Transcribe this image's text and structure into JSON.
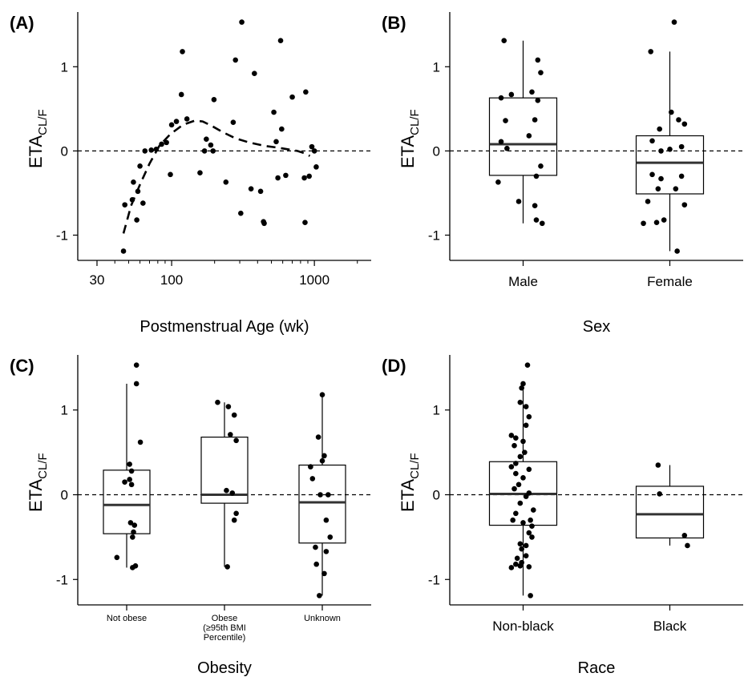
{
  "chart_data": [
    {
      "panel": "(A)",
      "type": "scatter",
      "xlabel": "Postmenstrual Age (wk)",
      "ylabel": "ETA",
      "ylabel_sub": "CL/F",
      "x_scale": "log",
      "xlim": [
        22,
        2500
      ],
      "ylim": [
        -1.3,
        1.65
      ],
      "x_ticks": [
        30,
        100,
        1000
      ],
      "x_tick_labels": [
        "30",
        "100",
        "1000"
      ],
      "y_ticks": [
        -1,
        0,
        1
      ],
      "y_tick_labels": [
        "-1",
        "0",
        "1"
      ],
      "reference_line": 0,
      "grid": false,
      "points": [
        [
          46,
          -1.19
        ],
        [
          47,
          -0.64
        ],
        [
          53,
          -0.58
        ],
        [
          54,
          -0.37
        ],
        [
          57,
          -0.82
        ],
        [
          58,
          -0.48
        ],
        [
          60,
          -0.18
        ],
        [
          63,
          -0.62
        ],
        [
          65,
          0.0
        ],
        [
          72,
          0.01
        ],
        [
          78,
          0.02
        ],
        [
          85,
          0.08
        ],
        [
          92,
          0.1
        ],
        [
          98,
          -0.28
        ],
        [
          100,
          0.31
        ],
        [
          108,
          0.35
        ],
        [
          117,
          0.67
        ],
        [
          119,
          1.18
        ],
        [
          128,
          0.38
        ],
        [
          158,
          -0.26
        ],
        [
          170,
          0.0
        ],
        [
          175,
          0.14
        ],
        [
          188,
          0.07
        ],
        [
          195,
          0.0
        ],
        [
          198,
          0.61
        ],
        [
          240,
          -0.37
        ],
        [
          270,
          0.34
        ],
        [
          280,
          1.08
        ],
        [
          305,
          -0.74
        ],
        [
          310,
          1.53
        ],
        [
          360,
          -0.45
        ],
        [
          380,
          0.92
        ],
        [
          420,
          -0.48
        ],
        [
          440,
          -0.84
        ],
        [
          445,
          -0.86
        ],
        [
          520,
          0.46
        ],
        [
          540,
          0.11
        ],
        [
          555,
          -0.32
        ],
        [
          580,
          1.31
        ],
        [
          590,
          0.26
        ],
        [
          630,
          -0.29
        ],
        [
          700,
          0.64
        ],
        [
          850,
          -0.32
        ],
        [
          860,
          -0.85
        ],
        [
          870,
          0.7
        ],
        [
          920,
          -0.3
        ],
        [
          960,
          0.05
        ],
        [
          1000,
          0.0
        ],
        [
          1030,
          -0.19
        ]
      ],
      "smooth_line": [
        [
          46,
          -0.98
        ],
        [
          52,
          -0.65
        ],
        [
          60,
          -0.4
        ],
        [
          70,
          -0.15
        ],
        [
          82,
          0.06
        ],
        [
          98,
          0.2
        ],
        [
          120,
          0.31
        ],
        [
          145,
          0.36
        ],
        [
          165,
          0.35
        ],
        [
          190,
          0.3
        ],
        [
          230,
          0.22
        ],
        [
          280,
          0.15
        ],
        [
          350,
          0.1
        ],
        [
          450,
          0.06
        ],
        [
          550,
          0.04
        ],
        [
          650,
          0.02
        ],
        [
          760,
          0.0
        ],
        [
          860,
          -0.03
        ],
        [
          930,
          -0.06
        ]
      ]
    },
    {
      "panel": "(B)",
      "type": "box",
      "xlabel": "Sex",
      "ylabel": "ETA",
      "ylabel_sub": "CL/F",
      "ylim": [
        -1.3,
        1.65
      ],
      "y_ticks": [
        -1,
        0,
        1
      ],
      "y_tick_labels": [
        "-1",
        "0",
        "1"
      ],
      "reference_line": 0,
      "grid": false,
      "categories": [
        "Male",
        "Female"
      ],
      "boxes": [
        {
          "q1": -0.29,
          "median": 0.08,
          "q3": 0.63,
          "whisker_low": -0.86,
          "whisker_high": 1.31
        },
        {
          "q1": -0.51,
          "median": -0.14,
          "q3": 0.18,
          "whisker_low": -1.19,
          "whisker_high": 1.18
        }
      ],
      "points": [
        [
          [
            -0.13,
            1.31
          ],
          [
            0.1,
            1.08
          ],
          [
            0.12,
            0.93
          ],
          [
            -0.08,
            0.67
          ],
          [
            0.06,
            0.7
          ],
          [
            -0.15,
            0.63
          ],
          [
            0.1,
            0.6
          ],
          [
            -0.12,
            0.36
          ],
          [
            0.08,
            0.37
          ],
          [
            0.04,
            0.18
          ],
          [
            -0.15,
            0.11
          ],
          [
            -0.11,
            0.03
          ],
          [
            0.12,
            -0.18
          ],
          [
            0.09,
            -0.3
          ],
          [
            -0.17,
            -0.37
          ],
          [
            -0.03,
            -0.6
          ],
          [
            0.08,
            -0.65
          ],
          [
            0.09,
            -0.82
          ],
          [
            0.13,
            -0.86
          ]
        ],
        [
          [
            0.03,
            1.53
          ],
          [
            -0.13,
            1.18
          ],
          [
            0.01,
            0.46
          ],
          [
            0.06,
            0.37
          ],
          [
            0.1,
            0.32
          ],
          [
            -0.07,
            0.26
          ],
          [
            -0.12,
            0.12
          ],
          [
            0.08,
            0.05
          ],
          [
            0.0,
            0.02
          ],
          [
            -0.06,
            0.0
          ],
          [
            -0.12,
            -0.28
          ],
          [
            -0.06,
            -0.33
          ],
          [
            0.08,
            -0.3
          ],
          [
            0.04,
            -0.45
          ],
          [
            -0.08,
            -0.45
          ],
          [
            -0.15,
            -0.6
          ],
          [
            0.1,
            -0.64
          ],
          [
            -0.04,
            -0.82
          ],
          [
            -0.18,
            -0.86
          ],
          [
            -0.09,
            -0.85
          ],
          [
            0.05,
            -1.19
          ]
        ]
      ]
    },
    {
      "panel": "(C)",
      "type": "box",
      "xlabel": "Obesity",
      "ylabel": "ETA",
      "ylabel_sub": "CL/F",
      "ylim": [
        -1.3,
        1.65
      ],
      "y_ticks": [
        -1,
        0,
        1
      ],
      "y_tick_labels": [
        "-1",
        "0",
        "1"
      ],
      "reference_line": 0,
      "grid": false,
      "categories": [
        "Not obese",
        "Obese\n(≥95th BMI\nPercentile)",
        "Unknown"
      ],
      "boxes": [
        {
          "q1": -0.46,
          "median": -0.12,
          "q3": 0.29,
          "whisker_low": -0.86,
          "whisker_high": 1.31
        },
        {
          "q1": -0.1,
          "median": 0.0,
          "q3": 0.68,
          "whisker_low": -0.85,
          "whisker_high": 1.09
        },
        {
          "q1": -0.57,
          "median": -0.09,
          "q3": 0.35,
          "whisker_low": -1.19,
          "whisker_high": 1.18
        }
      ],
      "points": [
        [
          [
            0.1,
            1.53
          ],
          [
            0.1,
            1.31
          ],
          [
            0.14,
            0.62
          ],
          [
            0.03,
            0.36
          ],
          [
            0.05,
            0.28
          ],
          [
            0.03,
            0.18
          ],
          [
            -0.02,
            0.15
          ],
          [
            0.05,
            0.12
          ],
          [
            0.04,
            -0.33
          ],
          [
            0.08,
            -0.36
          ],
          [
            0.07,
            -0.44
          ],
          [
            0.06,
            -0.5
          ],
          [
            -0.1,
            -0.74
          ],
          [
            0.09,
            -0.84
          ],
          [
            0.06,
            -0.86
          ]
        ],
        [
          [
            -0.07,
            1.09
          ],
          [
            0.04,
            1.04
          ],
          [
            0.1,
            0.94
          ],
          [
            0.06,
            0.71
          ],
          [
            0.12,
            0.64
          ],
          [
            0.02,
            0.05
          ],
          [
            0.08,
            0.02
          ],
          [
            0.12,
            -0.22
          ],
          [
            0.1,
            -0.3
          ],
          [
            0.03,
            -0.85
          ]
        ],
        [
          [
            0.0,
            1.18
          ],
          [
            -0.04,
            0.68
          ],
          [
            0.02,
            0.46
          ],
          [
            0.0,
            0.4
          ],
          [
            -0.12,
            0.33
          ],
          [
            -0.1,
            0.19
          ],
          [
            -0.02,
            0.0
          ],
          [
            0.06,
            0.0
          ],
          [
            0.04,
            -0.3
          ],
          [
            0.08,
            -0.5
          ],
          [
            -0.07,
            -0.62
          ],
          [
            0.04,
            -0.67
          ],
          [
            -0.06,
            -0.82
          ],
          [
            0.02,
            -0.93
          ],
          [
            -0.03,
            -1.19
          ]
        ]
      ]
    },
    {
      "panel": "(D)",
      "type": "box",
      "xlabel": "Race",
      "ylabel": "ETA",
      "ylabel_sub": "CL/F",
      "ylim": [
        -1.3,
        1.65
      ],
      "y_ticks": [
        -1,
        0,
        1
      ],
      "y_tick_labels": [
        "-1",
        "0",
        "1"
      ],
      "reference_line": 0,
      "grid": false,
      "categories": [
        "Non-black",
        "Black"
      ],
      "boxes": [
        {
          "q1": -0.36,
          "median": 0.01,
          "q3": 0.39,
          "whisker_low": -1.19,
          "whisker_high": 1.31
        },
        {
          "q1": -0.51,
          "median": -0.23,
          "q3": 0.1,
          "whisker_low": -0.6,
          "whisker_high": 0.35
        }
      ],
      "points": [
        [
          [
            0.03,
            1.53
          ],
          [
            0.0,
            1.31
          ],
          [
            -0.01,
            1.26
          ],
          [
            -0.02,
            1.09
          ],
          [
            0.02,
            1.04
          ],
          [
            0.04,
            0.92
          ],
          [
            0.02,
            0.82
          ],
          [
            -0.08,
            0.7
          ],
          [
            -0.05,
            0.67
          ],
          [
            0.0,
            0.63
          ],
          [
            -0.06,
            0.58
          ],
          [
            0.01,
            0.5
          ],
          [
            -0.02,
            0.45
          ],
          [
            -0.05,
            0.37
          ],
          [
            -0.08,
            0.33
          ],
          [
            0.04,
            0.3
          ],
          [
            -0.05,
            0.25
          ],
          [
            0.0,
            0.2
          ],
          [
            -0.03,
            0.12
          ],
          [
            -0.06,
            0.07
          ],
          [
            0.04,
            0.02
          ],
          [
            0.02,
            -0.02
          ],
          [
            -0.02,
            -0.1
          ],
          [
            0.07,
            -0.18
          ],
          [
            -0.05,
            -0.22
          ],
          [
            -0.07,
            -0.3
          ],
          [
            0.05,
            -0.3
          ],
          [
            0.0,
            -0.33
          ],
          [
            0.06,
            -0.37
          ],
          [
            0.04,
            -0.45
          ],
          [
            0.06,
            -0.5
          ],
          [
            -0.02,
            -0.58
          ],
          [
            0.02,
            -0.6
          ],
          [
            -0.01,
            -0.64
          ],
          [
            0.02,
            -0.72
          ],
          [
            -0.04,
            -0.75
          ],
          [
            -0.01,
            -0.8
          ],
          [
            -0.05,
            -0.82
          ],
          [
            -0.02,
            -0.84
          ],
          [
            -0.08,
            -0.86
          ],
          [
            0.04,
            -0.85
          ],
          [
            0.05,
            -1.19
          ]
        ],
        [
          [
            -0.08,
            0.35
          ],
          [
            -0.07,
            0.01
          ],
          [
            0.1,
            -0.48
          ],
          [
            0.12,
            -0.6
          ]
        ]
      ]
    }
  ]
}
